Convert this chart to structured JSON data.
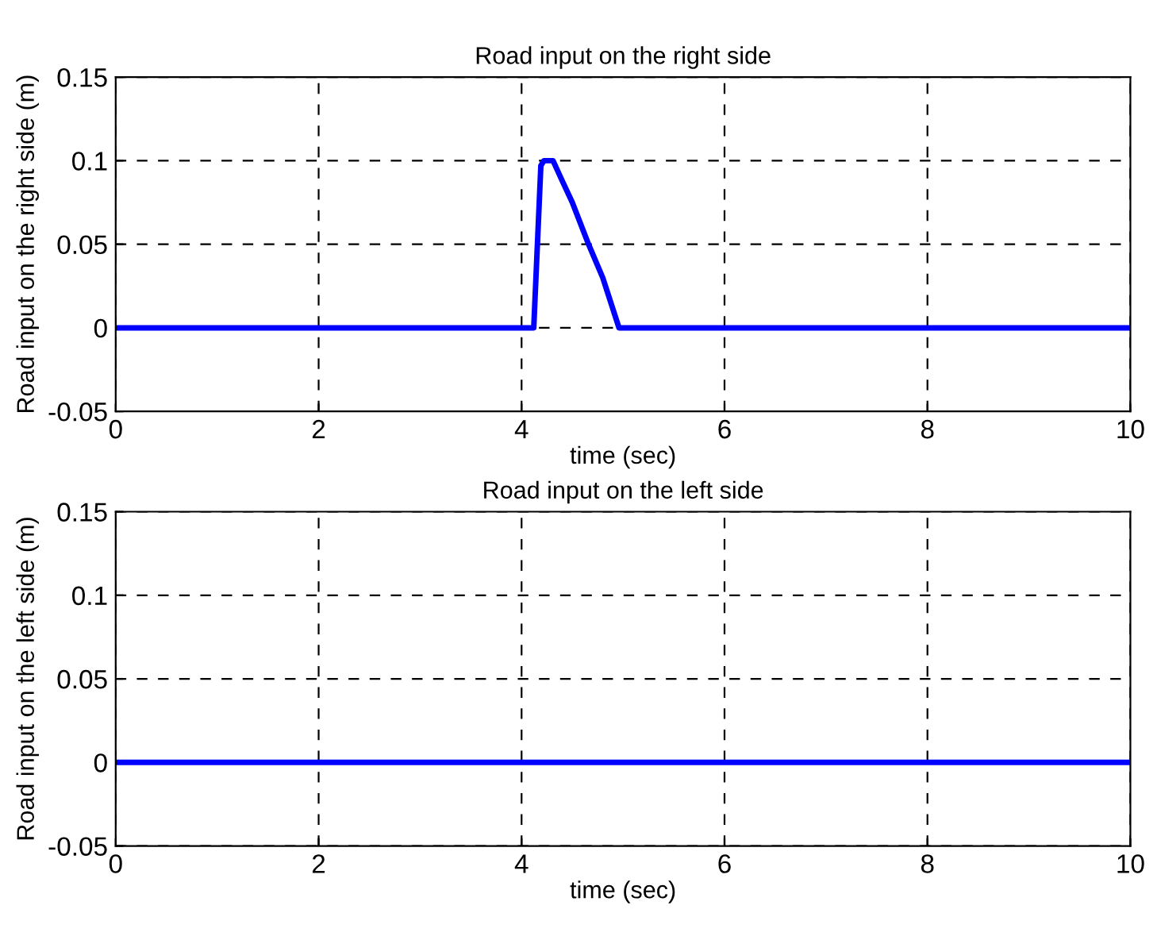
{
  "chart_data": [
    {
      "type": "line",
      "title": "Road input on the right side",
      "xlabel": "time (sec)",
      "ylabel": "Road input on the right side (m)",
      "x": [
        0,
        4.12,
        4.19,
        4.22,
        4.31,
        4.4,
        4.5,
        4.66,
        4.8,
        4.96,
        10
      ],
      "series": [
        {
          "color": "#0000ff",
          "values": [
            0,
            0,
            0.097,
            0.1,
            0.1,
            0.088,
            0.075,
            0.05,
            0.03,
            0,
            0
          ]
        }
      ],
      "xlim": [
        0,
        10
      ],
      "xticks": [
        0,
        2,
        4,
        6,
        8,
        10
      ],
      "ylim": [
        -0.05,
        0.15
      ],
      "yticks": [
        -0.05,
        0,
        0.05,
        0.1,
        0.15
      ],
      "grid": true,
      "line_style": "solid"
    },
    {
      "type": "line",
      "title": "Road input on the left side",
      "xlabel": "time (sec)",
      "ylabel": "Road input on the left side (m)",
      "x": [
        0,
        10
      ],
      "series": [
        {
          "color": "#0000ff",
          "values": [
            0,
            0
          ]
        }
      ],
      "xlim": [
        0,
        10
      ],
      "xticks": [
        0,
        2,
        4,
        6,
        8,
        10
      ],
      "ylim": [
        -0.05,
        0.15
      ],
      "yticks": [
        -0.05,
        0,
        0.05,
        0.1,
        0.15
      ],
      "grid": true,
      "line_style": "solid"
    }
  ]
}
